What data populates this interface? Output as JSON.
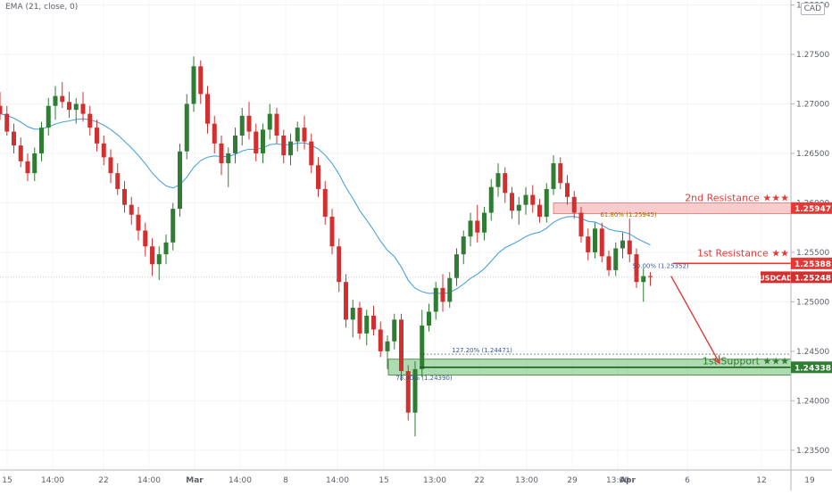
{
  "chart_data": {
    "type": "candlestick",
    "symbol": "USDCAD",
    "currency": "CAD",
    "indicator": "EMA (21, close, 0)",
    "ylim": [
      1.233,
      1.2805
    ],
    "y_ticks": [
      "1.28000",
      "1.27500",
      "1.27000",
      "1.26500",
      "1.26000",
      "1.25500",
      "1.25000",
      "1.24500",
      "1.24000",
      "1.23500"
    ],
    "x_ticks": [
      "15",
      "14:00",
      "22",
      "14:00",
      "Mar",
      "14:00",
      "8",
      "14:00",
      "15",
      "13:00",
      "22",
      "13:00",
      "29",
      "13:00",
      "Apr",
      "6",
      "12",
      "19"
    ],
    "colors": {
      "up": "#2e7d32",
      "down": "#d32f2f",
      "ema": "#4aa3df",
      "resistance": "#e53935",
      "support": "#2e7d32"
    },
    "price_labels": [
      {
        "text": "1.25947",
        "color": "#e53935"
      },
      {
        "text": "1.25388",
        "color": "#e53935"
      },
      {
        "text": "1.25248",
        "color": "#d32f2f"
      },
      {
        "text": "1.24338",
        "color": "#2e7d32"
      }
    ],
    "current_price_tag": "USDCAD",
    "annotations": {
      "second_resistance": "2nd Resistance ★★★",
      "first_resistance": "1st Resistance ★★",
      "first_support": "1st Support ★★★",
      "fib_res2": "61.80% (1.25945)",
      "fib_res1": "50.00% (1.25352)",
      "fib_sup_a": "127.20% (1.24471)",
      "fib_sup_b": "78.60% (1.24390)"
    },
    "zones": {
      "resistance2": [
        1.2589,
        1.26
      ],
      "support": [
        1.2426,
        1.2442
      ]
    },
    "key_levels": {
      "res2": 1.25947,
      "res1": 1.25388,
      "current": 1.25248,
      "sup": 1.24338,
      "fib_sup_a": 1.24471
    },
    "arrow": {
      "from_bar": 97,
      "from": 1.2526,
      "to_bar": 104,
      "to": 1.2438
    },
    "candles": [
      [
        1.2698,
        1.2712,
        1.2684,
        1.269
      ],
      [
        1.269,
        1.2698,
        1.2668,
        1.2672
      ],
      [
        1.2672,
        1.268,
        1.265,
        1.2658
      ],
      [
        1.2658,
        1.2666,
        1.2636,
        1.2642
      ],
      [
        1.2642,
        1.265,
        1.2622,
        1.263
      ],
      [
        1.263,
        1.2656,
        1.2622,
        1.265
      ],
      [
        1.265,
        1.2682,
        1.2642,
        1.2676
      ],
      [
        1.2676,
        1.2706,
        1.2668,
        1.2698
      ],
      [
        1.2698,
        1.2718,
        1.2684,
        1.2708
      ],
      [
        1.2708,
        1.2722,
        1.2696,
        1.2702
      ],
      [
        1.2702,
        1.2712,
        1.2686,
        1.2694
      ],
      [
        1.2694,
        1.2706,
        1.268,
        1.27
      ],
      [
        1.27,
        1.2712,
        1.2682,
        1.269
      ],
      [
        1.269,
        1.2698,
        1.2668,
        1.2676
      ],
      [
        1.2676,
        1.2684,
        1.2652,
        1.266
      ],
      [
        1.266,
        1.2668,
        1.2638,
        1.2646
      ],
      [
        1.2646,
        1.2654,
        1.262,
        1.263
      ],
      [
        1.263,
        1.264,
        1.2608,
        1.2614
      ],
      [
        1.2614,
        1.2622,
        1.259,
        1.2598
      ],
      [
        1.2598,
        1.2606,
        1.2578,
        1.2588
      ],
      [
        1.2588,
        1.2596,
        1.2562,
        1.2572
      ],
      [
        1.2572,
        1.258,
        1.2546,
        1.2556
      ],
      [
        1.2556,
        1.2564,
        1.2526,
        1.2538
      ],
      [
        1.2538,
        1.2556,
        1.2522,
        1.2548
      ],
      [
        1.2548,
        1.2568,
        1.2538,
        1.256
      ],
      [
        1.256,
        1.26,
        1.2552,
        1.2594
      ],
      [
        1.2594,
        1.266,
        1.2586,
        1.2652
      ],
      [
        1.2652,
        1.271,
        1.2644,
        1.27
      ],
      [
        1.27,
        1.2748,
        1.2692,
        1.2738
      ],
      [
        1.2738,
        1.2744,
        1.27,
        1.271
      ],
      [
        1.271,
        1.2718,
        1.267,
        1.268
      ],
      [
        1.268,
        1.2688,
        1.265,
        1.266
      ],
      [
        1.266,
        1.2668,
        1.2628,
        1.264
      ],
      [
        1.264,
        1.2656,
        1.2616,
        1.265
      ],
      [
        1.265,
        1.2676,
        1.264,
        1.2668
      ],
      [
        1.2668,
        1.2696,
        1.2658,
        1.2688
      ],
      [
        1.2688,
        1.2702,
        1.2664,
        1.2672
      ],
      [
        1.2672,
        1.268,
        1.2642,
        1.265
      ],
      [
        1.265,
        1.268,
        1.264,
        1.2674
      ],
      [
        1.2674,
        1.27,
        1.2664,
        1.269
      ],
      [
        1.269,
        1.2696,
        1.266,
        1.2668
      ],
      [
        1.2668,
        1.2674,
        1.264,
        1.2648
      ],
      [
        1.2648,
        1.267,
        1.2638,
        1.2662
      ],
      [
        1.2662,
        1.2682,
        1.2652,
        1.2676
      ],
      [
        1.2676,
        1.2688,
        1.2654,
        1.2662
      ],
      [
        1.2662,
        1.267,
        1.263,
        1.2638
      ],
      [
        1.2638,
        1.2646,
        1.2606,
        1.2614
      ],
      [
        1.2614,
        1.2622,
        1.2578,
        1.2586
      ],
      [
        1.2586,
        1.2594,
        1.2548,
        1.2556
      ],
      [
        1.2556,
        1.2564,
        1.251,
        1.252
      ],
      [
        1.252,
        1.2528,
        1.2474,
        1.2482
      ],
      [
        1.2482,
        1.2502,
        1.2464,
        1.2494
      ],
      [
        1.2494,
        1.25,
        1.2462,
        1.2468
      ],
      [
        1.2468,
        1.2492,
        1.2456,
        1.2486
      ],
      [
        1.2486,
        1.2496,
        1.2466,
        1.2472
      ],
      [
        1.2472,
        1.248,
        1.2444,
        1.245
      ],
      [
        1.245,
        1.2466,
        1.2432,
        1.246
      ],
      [
        1.246,
        1.2488,
        1.2452,
        1.2482
      ],
      [
        1.2482,
        1.2488,
        1.242,
        1.243
      ],
      [
        1.243,
        1.2436,
        1.238,
        1.2388
      ],
      [
        1.2388,
        1.244,
        1.2364,
        1.2432
      ],
      [
        1.2432,
        1.2492,
        1.2424,
        1.2476
      ],
      [
        1.2476,
        1.2498,
        1.247,
        1.249
      ],
      [
        1.249,
        1.252,
        1.2482,
        1.2514
      ],
      [
        1.2514,
        1.2528,
        1.249,
        1.25
      ],
      [
        1.25,
        1.253,
        1.2494,
        1.2524
      ],
      [
        1.2524,
        1.2554,
        1.2516,
        1.2548
      ],
      [
        1.2548,
        1.2572,
        1.2538,
        1.2566
      ],
      [
        1.2566,
        1.259,
        1.2556,
        1.2582
      ],
      [
        1.2582,
        1.2598,
        1.256,
        1.257
      ],
      [
        1.257,
        1.2596,
        1.2562,
        1.259
      ],
      [
        1.259,
        1.2624,
        1.2582,
        1.2616
      ],
      [
        1.2616,
        1.264,
        1.2606,
        1.263
      ],
      [
        1.263,
        1.2636,
        1.26,
        1.261
      ],
      [
        1.261,
        1.2616,
        1.2584,
        1.2592
      ],
      [
        1.2592,
        1.2606,
        1.2578,
        1.2598
      ],
      [
        1.2598,
        1.2616,
        1.2588,
        1.2608
      ],
      [
        1.2608,
        1.2618,
        1.259,
        1.2598
      ],
      [
        1.2598,
        1.2604,
        1.258,
        1.2586
      ],
      [
        1.2586,
        1.262,
        1.258,
        1.2614
      ],
      [
        1.2614,
        1.2648,
        1.2608,
        1.264
      ],
      [
        1.264,
        1.2646,
        1.2614,
        1.262
      ],
      [
        1.262,
        1.2628,
        1.2598,
        1.2606
      ],
      [
        1.2606,
        1.2612,
        1.2584,
        1.259
      ],
      [
        1.259,
        1.2596,
        1.256,
        1.2566
      ],
      [
        1.2566,
        1.2574,
        1.2542,
        1.255
      ],
      [
        1.255,
        1.258,
        1.2544,
        1.2574
      ],
      [
        1.2574,
        1.258,
        1.254,
        1.2546
      ],
      [
        1.2546,
        1.2552,
        1.2526,
        1.2532
      ],
      [
        1.2532,
        1.256,
        1.2526,
        1.2554
      ],
      [
        1.2554,
        1.257,
        1.2544,
        1.2562
      ],
      [
        1.2562,
        1.2584,
        1.254,
        1.2548
      ],
      [
        1.2548,
        1.2554,
        1.2514,
        1.252
      ],
      [
        1.252,
        1.2534,
        1.25,
        1.2526
      ],
      [
        1.2526,
        1.253,
        1.2516,
        1.2525
      ]
    ]
  }
}
